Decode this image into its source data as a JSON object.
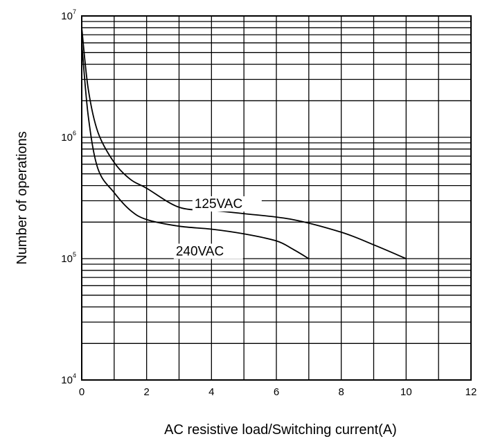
{
  "chart_data": {
    "type": "line",
    "title": "",
    "xlabel": "AC resistive load/Switching current(A)",
    "ylabel": "Number of operations",
    "xlim": [
      0,
      12
    ],
    "ylim": [
      10000,
      10000000
    ],
    "yscale": "log",
    "grid": true,
    "x_ticks": [
      "0",
      "2",
      "4",
      "6",
      "8",
      "10",
      "12"
    ],
    "y_ticks": [
      {
        "base": "10",
        "exp": "4"
      },
      {
        "base": "10",
        "exp": "5"
      },
      {
        "base": "10",
        "exp": "6"
      },
      {
        "base": "10",
        "exp": "7"
      }
    ],
    "series": [
      {
        "name": "125VAC",
        "x": [
          0,
          0.2,
          0.5,
          1.0,
          1.5,
          2.0,
          3.0,
          4.0,
          5.0,
          6.5,
          8.0,
          9.0,
          10.0
        ],
        "y": [
          8000000,
          2500000,
          1100000,
          620000,
          450000,
          380000,
          265000,
          250000,
          235000,
          210000,
          165000,
          130000,
          100000
        ]
      },
      {
        "name": "240VAC",
        "x": [
          0,
          0.2,
          0.5,
          1.0,
          1.5,
          2.0,
          3.0,
          4.0,
          5.0,
          6.0,
          6.5,
          7.0
        ],
        "y": [
          6000000,
          1500000,
          550000,
          350000,
          250000,
          210000,
          185000,
          175000,
          160000,
          140000,
          120000,
          100000
        ]
      }
    ]
  }
}
